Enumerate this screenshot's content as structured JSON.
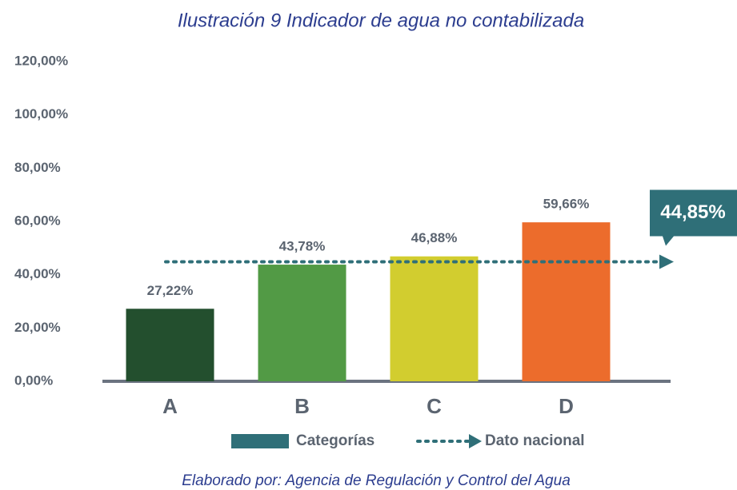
{
  "chart_data": {
    "type": "bar",
    "title": "Ilustración 9 Indicador de agua no contabilizada",
    "source": "Elaborado por: Agencia de Regulación y Control del Agua",
    "categories": [
      "A",
      "B",
      "C",
      "D"
    ],
    "series": [
      {
        "name": "Categorías",
        "color": "#2f6f78",
        "values": [
          27.22,
          43.78,
          46.88,
          59.66
        ],
        "value_labels": [
          "27,22%",
          "43,78%",
          "46,88%",
          "59,66%"
        ],
        "colors": [
          "#234f2e",
          "#529a45",
          "#d2cd2f",
          "#ec6c2c"
        ]
      }
    ],
    "reference_line": {
      "name": "Dato nacional",
      "value": 44.85,
      "label": "44,85%",
      "color": "#2f6f78"
    },
    "ylim": [
      0,
      120
    ],
    "yticks": [
      {
        "value": 0,
        "label": "0,00%"
      },
      {
        "value": 20,
        "label": "20,00%"
      },
      {
        "value": 40,
        "label": "40,00%"
      },
      {
        "value": 60,
        "label": "60,00%"
      },
      {
        "value": 80,
        "label": "80,00%"
      },
      {
        "value": 100,
        "label": "100,00%"
      },
      {
        "value": 120,
        "label": "120,00%"
      }
    ],
    "grid": false
  }
}
